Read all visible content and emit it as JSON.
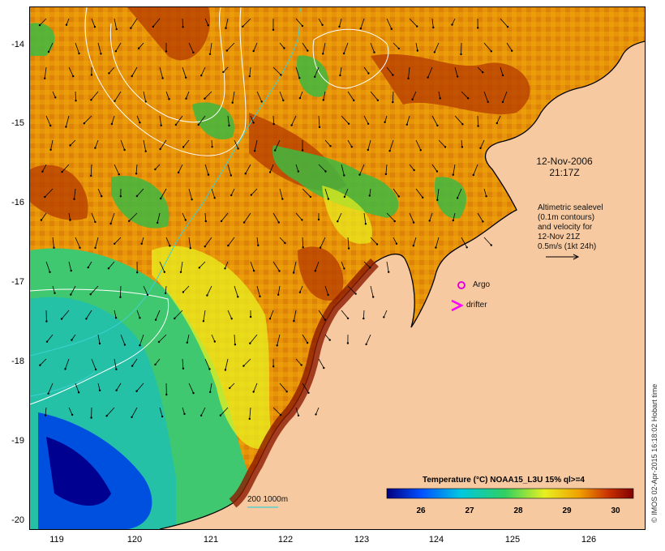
{
  "map": {
    "lat_ticks": [
      "-14",
      "-15",
      "-16",
      "-17",
      "-18",
      "-19",
      "-20"
    ],
    "lon_ticks": [
      "119",
      "120",
      "121",
      "122",
      "123",
      "124",
      "125",
      "126"
    ],
    "lat_range": [
      -20.05,
      -13.6
    ],
    "lon_range": [
      118.65,
      126.7
    ]
  },
  "timestamp": {
    "date": "12-Nov-2006",
    "time": "21:17Z"
  },
  "altimetry_note": [
    "Altimetric sealevel",
    "(0.1m contours)",
    "and velocity for",
    "12-Nov 21Z",
    "0.5m/s (1kt 24h)"
  ],
  "markers": {
    "argo_label": "Argo",
    "drifter_label": "drifter",
    "argo_color": "#e000e0",
    "drifter_color": "#ff00ff"
  },
  "bathymetry_label": "200  1000m",
  "colorbar": {
    "title": "Temperature (°C) NOAA15_L3U 15% ql>=4",
    "ticks": [
      "26",
      "27",
      "28",
      "29",
      "30"
    ],
    "range": [
      25.3,
      30.4
    ],
    "colors": [
      "#00007f",
      "#0050ff",
      "#00c8e0",
      "#30d060",
      "#e8f020",
      "#f0a000",
      "#c83000",
      "#800000"
    ]
  },
  "credit": "© IMOS 02-Apr-2015 16:18:02 Hobart time",
  "colors": {
    "land": "#f7c9a0",
    "contour": "#ffffff",
    "bathy": "#40d0d0"
  }
}
